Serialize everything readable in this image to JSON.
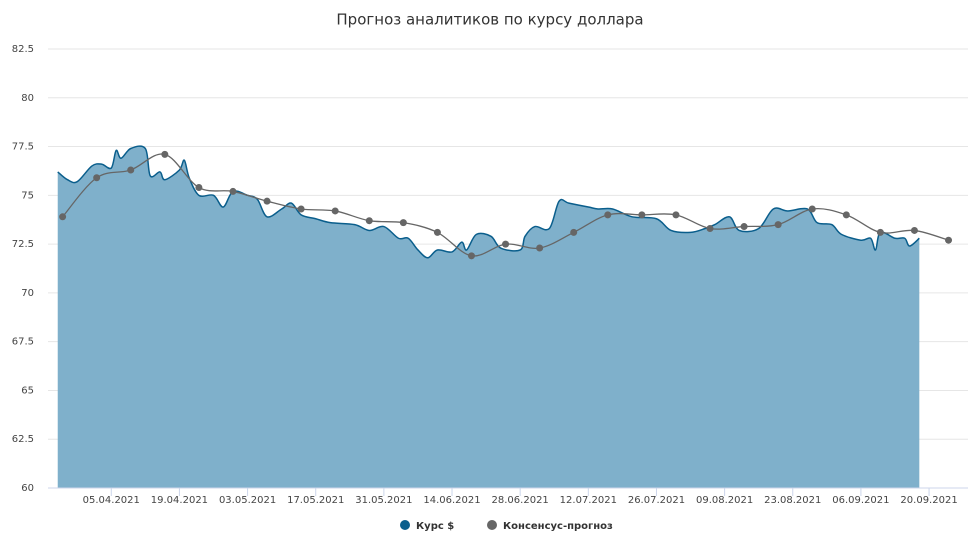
{
  "chart_data": {
    "type": "areaspline",
    "title": "Прогноз аналитиков по курсу доллара",
    "xlim": [
      "23.03.2021",
      "28.09.2021"
    ],
    "xticks": [
      "05.04.2021",
      "19.04.2021",
      "03.05.2021",
      "17.05.2021",
      "31.05.2021",
      "14.06.2021",
      "28.06.2021",
      "12.07.2021",
      "26.07.2021",
      "09.08.2021",
      "23.08.2021",
      "06.09.2021",
      "20.09.2021"
    ],
    "ylim": [
      60,
      82.5
    ],
    "yticks": [
      60,
      62.5,
      65,
      67.5,
      70,
      72.5,
      75,
      77.5,
      80,
      82.5
    ],
    "grid": true,
    "legend": "bottom",
    "series": [
      {
        "name": "Курс $",
        "color": "#0a5e8c",
        "fill": "#7fb0cb",
        "kind": "area",
        "x": [
          "25.03.2021",
          "27.03.2021",
          "29.03.2021",
          "01.04.2021",
          "03.04.2021",
          "05.04.2021",
          "06.04.2021",
          "07.04.2021",
          "09.04.2021",
          "12.04.2021",
          "13.04.2021",
          "15.04.2021",
          "16.04.2021",
          "19.04.2021",
          "20.04.2021",
          "21.04.2021",
          "23.04.2021",
          "26.04.2021",
          "28.04.2021",
          "30.04.2021",
          "03.05.2021",
          "05.05.2021",
          "07.05.2021",
          "10.05.2021",
          "12.05.2021",
          "14.05.2021",
          "17.05.2021",
          "20.05.2021",
          "25.05.2021",
          "28.05.2021",
          "31.05.2021",
          "03.06.2021",
          "05.06.2021",
          "07.06.2021",
          "09.06.2021",
          "11.06.2021",
          "14.06.2021",
          "16.06.2021",
          "17.06.2021",
          "19.06.2021",
          "22.06.2021",
          "24.06.2021",
          "28.06.2021",
          "29.06.2021",
          "01.07.2021",
          "04.07.2021",
          "06.07.2021",
          "08.07.2021",
          "12.07.2021",
          "14.07.2021",
          "17.07.2021",
          "21.07.2021",
          "26.07.2021",
          "29.07.2021",
          "02.08.2021",
          "05.08.2021",
          "07.08.2021",
          "10.08.2021",
          "12.08.2021",
          "16.08.2021",
          "19.08.2021",
          "22.08.2021",
          "26.08.2021",
          "28.08.2021",
          "31.08.2021",
          "02.09.2021",
          "06.09.2021",
          "08.09.2021",
          "09.09.2021",
          "10.09.2021",
          "13.09.2021",
          "15.09.2021",
          "16.09.2021",
          "18.09.2021"
        ],
        "values": [
          76.2,
          75.8,
          75.7,
          76.5,
          76.6,
          76.4,
          77.3,
          76.9,
          77.4,
          77.4,
          76.0,
          76.2,
          75.8,
          76.3,
          76.8,
          75.9,
          75.0,
          75.0,
          74.4,
          75.2,
          75.0,
          74.8,
          73.9,
          74.3,
          74.6,
          74.0,
          73.8,
          73.6,
          73.5,
          73.2,
          73.4,
          72.8,
          72.8,
          72.2,
          71.8,
          72.2,
          72.1,
          72.6,
          72.2,
          73.0,
          72.9,
          72.3,
          72.2,
          72.9,
          73.4,
          73.3,
          74.7,
          74.6,
          74.4,
          74.3,
          74.3,
          73.9,
          73.8,
          73.2,
          73.1,
          73.3,
          73.5,
          73.9,
          73.2,
          73.3,
          74.3,
          74.2,
          74.3,
          73.6,
          73.5,
          73.0,
          72.7,
          72.8,
          72.2,
          73.1,
          72.8,
          72.8,
          72.4,
          72.8
        ]
      },
      {
        "name": "Консенсус-прогноз",
        "color": "#666666",
        "kind": "line",
        "x": [
          "26.03.2021",
          "02.04.2021",
          "09.04.2021",
          "16.04.2021",
          "23.04.2021",
          "30.04.2021",
          "07.05.2021",
          "14.05.2021",
          "21.05.2021",
          "28.05.2021",
          "04.06.2021",
          "11.06.2021",
          "18.06.2021",
          "25.06.2021",
          "02.07.2021",
          "09.07.2021",
          "16.07.2021",
          "23.07.2021",
          "30.07.2021",
          "06.08.2021",
          "13.08.2021",
          "20.08.2021",
          "27.08.2021",
          "03.09.2021",
          "10.09.2021",
          "17.09.2021",
          "24.09.2021"
        ],
        "values": [
          73.9,
          75.9,
          76.3,
          77.1,
          75.4,
          75.2,
          74.7,
          74.3,
          74.2,
          73.7,
          73.6,
          73.1,
          71.9,
          72.5,
          72.3,
          73.1,
          74.0,
          74.0,
          74.0,
          73.3,
          73.4,
          73.5,
          74.3,
          74.0,
          73.1,
          73.2,
          72.7
        ]
      }
    ]
  }
}
